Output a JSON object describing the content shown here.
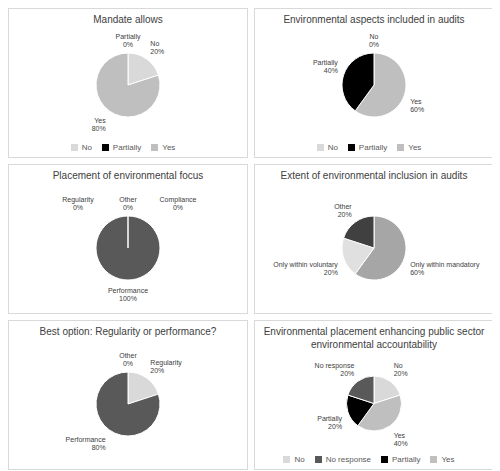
{
  "chart_data": [
    {
      "type": "pie",
      "title": "Mandate allows",
      "categories": [
        "No",
        "Yes",
        "Partially"
      ],
      "values": [
        20,
        80,
        0
      ],
      "value_labels": [
        "20%",
        "80%",
        "0%"
      ],
      "colors": [
        "#d9d9d9",
        "#bfbfbf",
        "#000000"
      ],
      "data_labels": true,
      "legend": "bottom"
    },
    {
      "type": "pie",
      "title": "Environmental aspects included in audits",
      "categories": [
        "No",
        "Yes",
        "Partially"
      ],
      "values": [
        0,
        60,
        40
      ],
      "value_labels": [
        "0%",
        "60%",
        "40%"
      ],
      "colors": [
        "#d9d9d9",
        "#bfbfbf",
        "#000000"
      ],
      "data_labels": true,
      "legend": "bottom"
    },
    {
      "type": "pie",
      "title": "Placement of environmental focus",
      "categories": [
        "Regularity",
        "Other",
        "Compliance",
        "Performance"
      ],
      "values": [
        0,
        0,
        0,
        100
      ],
      "value_labels": [
        "0%",
        "0%",
        "0%",
        "100%"
      ],
      "colors": [
        "#bfbfbf",
        "#262626",
        "#d9d9d9",
        "#595959"
      ],
      "data_labels": true
    },
    {
      "type": "pie",
      "title": "Extent of environmental inclusion in audits",
      "categories": [
        "Only within mandatory",
        "Only within voluntary",
        "Other"
      ],
      "values": [
        60,
        20,
        20
      ],
      "value_labels": [
        "60%",
        "20%",
        "20%"
      ],
      "colors": [
        "#a6a6a6",
        "#e0e0e0",
        "#404040"
      ],
      "data_labels": true
    },
    {
      "type": "pie",
      "title": "Best option: Regularity or performance?",
      "categories": [
        "Other",
        "Regularity",
        "Performance"
      ],
      "values": [
        0,
        20,
        80
      ],
      "value_labels": [
        "0%",
        "20%",
        "80%"
      ],
      "colors": [
        "#262626",
        "#d9d9d9",
        "#595959"
      ],
      "data_labels": true
    },
    {
      "type": "pie",
      "title": "Environmental placement enhancing public sector environmental accountability",
      "categories": [
        "No",
        "Yes",
        "Partially",
        "No response"
      ],
      "values": [
        20,
        40,
        20,
        20
      ],
      "value_labels": [
        "20%",
        "40%",
        "20%",
        "20%"
      ],
      "colors": [
        "#d9d9d9",
        "#bfbfbf",
        "#000000",
        "#595959"
      ],
      "data_labels": true,
      "legend": "bottom"
    }
  ]
}
